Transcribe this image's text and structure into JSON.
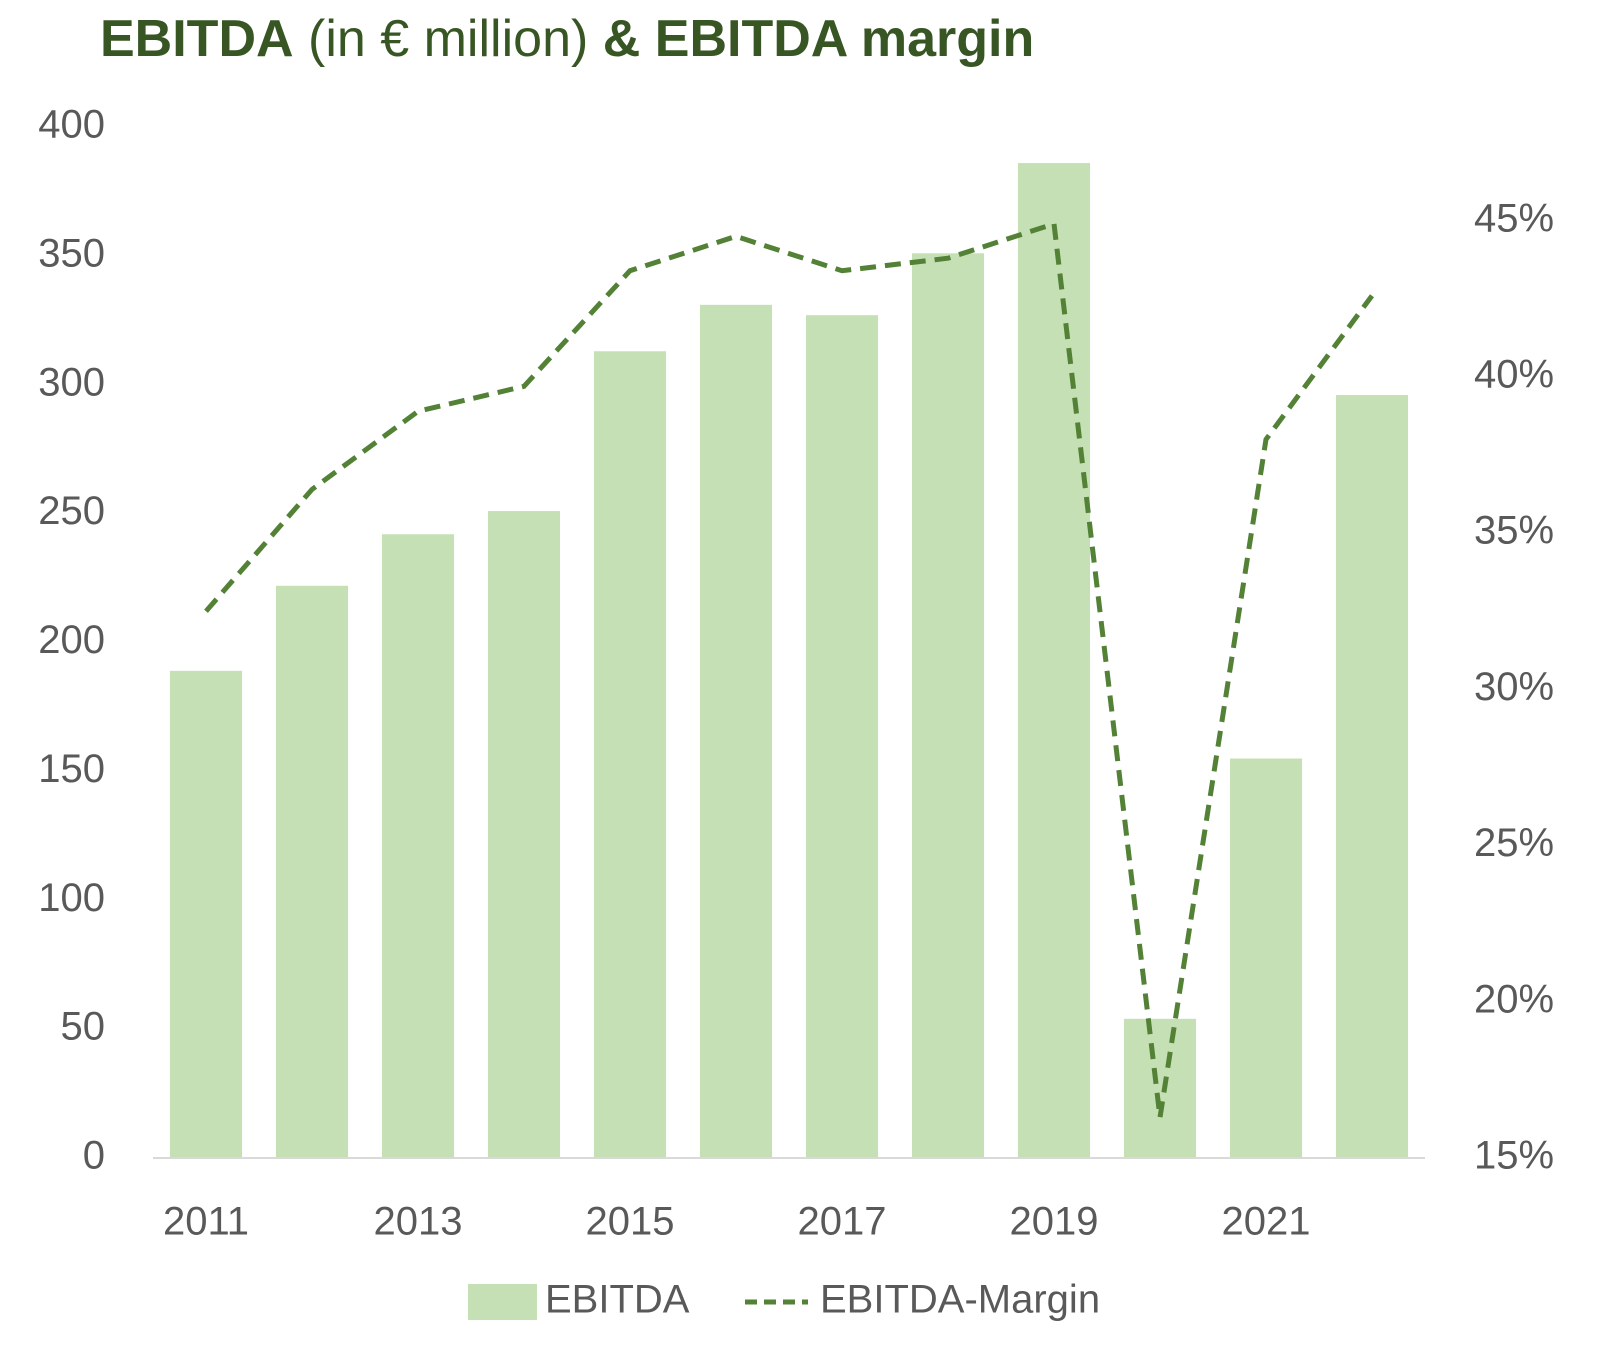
{
  "chart_data": {
    "type": "bar_line",
    "title": [
      "EBITDA",
      "(in € million)",
      "& EBITDA margin"
    ],
    "categories": [
      "2011",
      null,
      "2013",
      null,
      "2015",
      null,
      "2017",
      null,
      "2019",
      null,
      "2021",
      null
    ],
    "series": [
      {
        "name": "EBITDA",
        "type": "bar",
        "color": "#c5e0b4",
        "values": [
          189,
          222,
          242,
          251,
          313,
          331,
          327,
          351,
          386,
          54,
          155,
          296
        ]
      },
      {
        "name": "EBITDA-Margin",
        "type": "line",
        "axis": "y2",
        "color": "#538135",
        "dashed": true,
        "values": [
          32.5,
          36.4,
          38.9,
          39.7,
          43.4,
          44.5,
          43.4,
          43.8,
          44.9,
          16.3,
          38.0,
          42.6
        ]
      }
    ],
    "ylim": [
      0,
      400
    ],
    "yticks": [
      0,
      50,
      100,
      150,
      200,
      250,
      300,
      350,
      400
    ],
    "y2lim": [
      15,
      48
    ],
    "y2ticks": [
      {
        "value": 15,
        "label": "15%"
      },
      {
        "value": 20,
        "label": "20%"
      },
      {
        "value": 25,
        "label": "25%"
      },
      {
        "value": 30,
        "label": "30%"
      },
      {
        "value": 35,
        "label": "35%"
      },
      {
        "value": 40,
        "label": "40%"
      },
      {
        "value": 45,
        "label": "45%"
      }
    ],
    "grid": false,
    "legend": "bottom"
  }
}
